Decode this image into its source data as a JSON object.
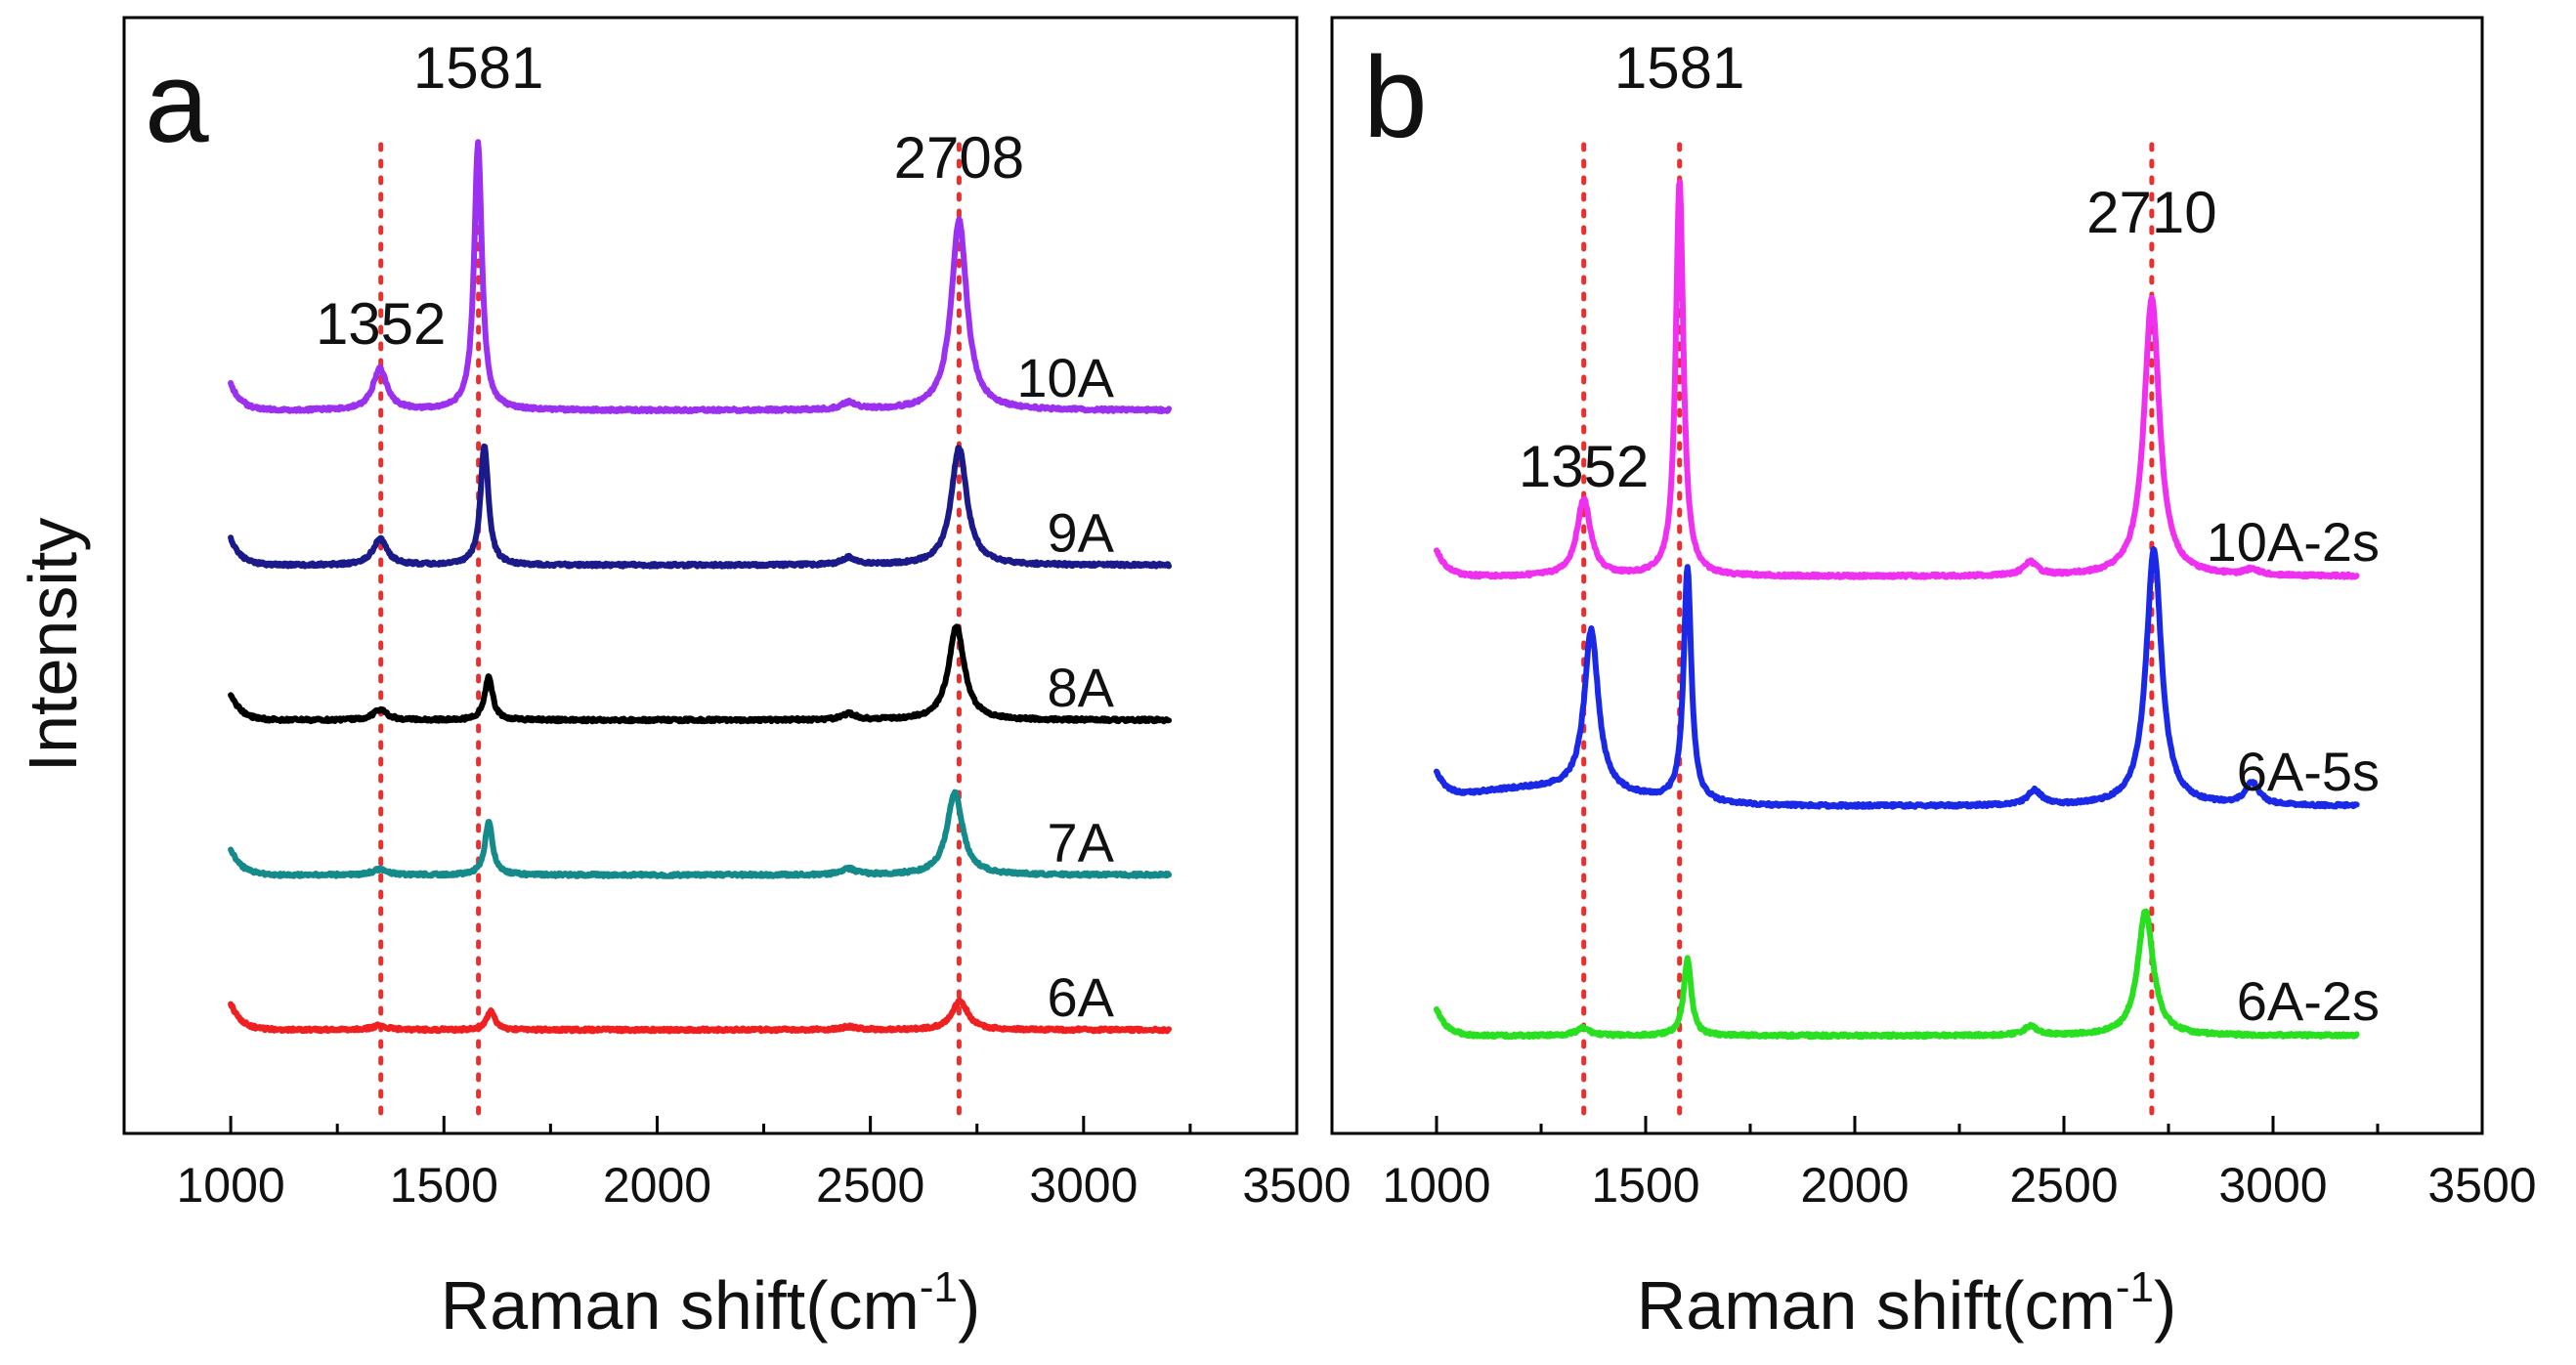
{
  "figure": {
    "y_axis_label": "Intensity",
    "x_axis_label": "Raman shift(cm",
    "x_axis_label_sup": "-1",
    "x_axis_label_close": ")"
  },
  "chart_data": [
    {
      "type": "line",
      "panel": "a",
      "xlabel": "Raman shift(cm-1)",
      "ylabel": "Intensity",
      "xlim": [
        750,
        3500
      ],
      "xticks": [
        1000,
        1500,
        2000,
        2500,
        3000,
        3500
      ],
      "x_range_data": [
        1000,
        3200
      ],
      "offset_step": 1.0,
      "peak_annotations": [
        {
          "label": "1352",
          "x": 1352
        },
        {
          "label": "1581",
          "x": 1581
        },
        {
          "label": "2708",
          "x": 2708
        }
      ],
      "reference_lines": [
        1352,
        1581,
        2708
      ],
      "series": [
        {
          "name": "10A",
          "color": "#9b30f0",
          "peaks": [
            {
              "x": 1350,
              "h": 0.28
            },
            {
              "x": 1580,
              "h": 1.82
            },
            {
              "x": 2450,
              "h": 0.05
            },
            {
              "x": 2708,
              "h": 1.3
            }
          ]
        },
        {
          "name": "9A",
          "color": "#1a1a8a",
          "peaks": [
            {
              "x": 1350,
              "h": 0.18
            },
            {
              "x": 1595,
              "h": 0.82
            },
            {
              "x": 2450,
              "h": 0.05
            },
            {
              "x": 2708,
              "h": 0.8
            }
          ]
        },
        {
          "name": "8A",
          "color": "#000000",
          "peaks": [
            {
              "x": 1350,
              "h": 0.07
            },
            {
              "x": 1605,
              "h": 0.3
            },
            {
              "x": 2450,
              "h": 0.04
            },
            {
              "x": 2702,
              "h": 0.64
            }
          ]
        },
        {
          "name": "7A",
          "color": "#148a8a",
          "peaks": [
            {
              "x": 1350,
              "h": 0.04
            },
            {
              "x": 1605,
              "h": 0.36
            },
            {
              "x": 2450,
              "h": 0.04
            },
            {
              "x": 2698,
              "h": 0.56
            }
          ]
        },
        {
          "name": "6A",
          "color": "#f02020",
          "peaks": [
            {
              "x": 1350,
              "h": 0.03
            },
            {
              "x": 1610,
              "h": 0.13
            },
            {
              "x": 2450,
              "h": 0.02
            },
            {
              "x": 2710,
              "h": 0.2
            }
          ]
        }
      ]
    },
    {
      "type": "line",
      "panel": "b",
      "xlabel": "Raman shift(cm-1)",
      "ylabel": "Intensity",
      "xlim": [
        750,
        3500
      ],
      "xticks": [
        1000,
        1500,
        2000,
        2500,
        3000,
        3500
      ],
      "x_range_data": [
        1000,
        3200
      ],
      "offset_step": 1.55,
      "peak_annotations": [
        {
          "label": "1352",
          "x": 1352
        },
        {
          "label": "1581",
          "x": 1581
        },
        {
          "label": "2710",
          "x": 2710
        }
      ],
      "reference_lines": [
        1352,
        1581,
        2710
      ],
      "series": [
        {
          "name": "10A-2s",
          "color": "#f030f0",
          "peaks": [
            {
              "x": 1352,
              "h": 0.52
            },
            {
              "x": 1581,
              "h": 2.7
            },
            {
              "x": 2420,
              "h": 0.09
            },
            {
              "x": 2710,
              "h": 1.9
            },
            {
              "x": 2950,
              "h": 0.04
            }
          ]
        },
        {
          "name": "6A-5s",
          "color": "#1a28e8",
          "peaks": [
            {
              "x": 1370,
              "h": 1.1
            },
            {
              "x": 1600,
              "h": 1.6
            },
            {
              "x": 2430,
              "h": 0.1
            },
            {
              "x": 2715,
              "h": 1.75
            },
            {
              "x": 2950,
              "h": 0.15
            }
          ]
        },
        {
          "name": "6A-2s",
          "color": "#28e020",
          "peaks": [
            {
              "x": 1350,
              "h": 0.05
            },
            {
              "x": 1600,
              "h": 0.52
            },
            {
              "x": 2420,
              "h": 0.06
            },
            {
              "x": 2695,
              "h": 0.85
            }
          ]
        }
      ]
    }
  ]
}
